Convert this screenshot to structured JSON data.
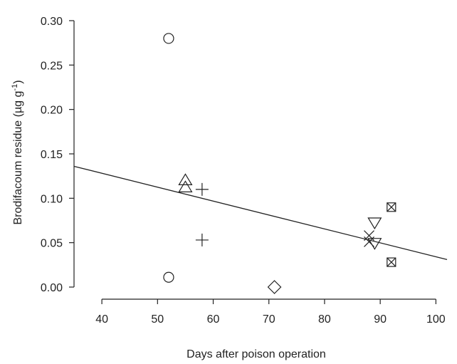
{
  "chart_data": {
    "type": "scatter",
    "title": "",
    "xlabel": "Days after poison operation",
    "ylabel_main": "Brodifacoum residue (µg g",
    "ylabel_sup": "-1",
    "ylabel_tail": ")",
    "xlim": [
      35,
      102
    ],
    "ylim": [
      0,
      0.3
    ],
    "xticks": [
      40,
      50,
      60,
      70,
      80,
      90,
      100
    ],
    "yticks": [
      0.0,
      0.05,
      0.1,
      0.15,
      0.2,
      0.25,
      0.3
    ],
    "grid": false,
    "legend": "none",
    "points": [
      {
        "x": 52,
        "y": 0.28,
        "marker": "circle"
      },
      {
        "x": 52,
        "y": 0.011,
        "marker": "circle"
      },
      {
        "x": 55,
        "y": 0.12,
        "marker": "triangle-up"
      },
      {
        "x": 55,
        "y": 0.112,
        "marker": "triangle-up"
      },
      {
        "x": 58,
        "y": 0.11,
        "marker": "plus"
      },
      {
        "x": 58,
        "y": 0.053,
        "marker": "plus"
      },
      {
        "x": 71,
        "y": 0.0,
        "marker": "diamond"
      },
      {
        "x": 88,
        "y": 0.058,
        "marker": "x"
      },
      {
        "x": 88,
        "y": 0.051,
        "marker": "x"
      },
      {
        "x": 89,
        "y": 0.073,
        "marker": "triangle-down"
      },
      {
        "x": 89,
        "y": 0.05,
        "marker": "triangle-down"
      },
      {
        "x": 92,
        "y": 0.09,
        "marker": "boxed-x"
      },
      {
        "x": 92,
        "y": 0.028,
        "marker": "boxed-x"
      }
    ],
    "fit_line": {
      "x": [
        35,
        102
      ],
      "y": [
        0.136,
        0.031
      ]
    }
  }
}
